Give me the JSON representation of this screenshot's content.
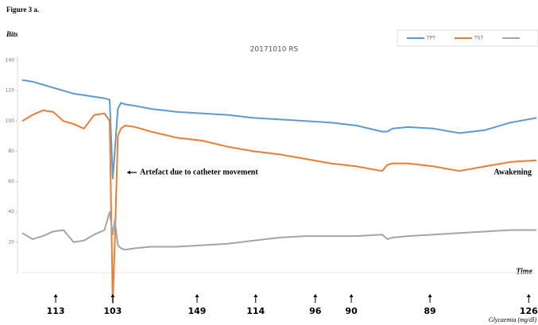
{
  "figure_label": "Figure 3 a.",
  "chart_data": {
    "type": "line",
    "title": "20171010 RS",
    "y_label": "Bits",
    "x_label": "Time",
    "annotations": [
      "Artefact due to catheter movement",
      "Awakening"
    ],
    "xlim": [
      0,
      100
    ],
    "ylim": [
      -20,
      140
    ],
    "yticks": [
      20,
      40,
      60,
      80,
      100,
      120,
      140
    ],
    "x": [
      0,
      2,
      4,
      6,
      8,
      10,
      12,
      14,
      16,
      17,
      17.6,
      18,
      18.6,
      19.2,
      20,
      22,
      25,
      30,
      35,
      40,
      45,
      50,
      55,
      60,
      65,
      70,
      71,
      72,
      75,
      80,
      85,
      90,
      95,
      100
    ],
    "series": [
      {
        "name": "TPT",
        "color": "#5b9bd5",
        "values": [
          127,
          126,
          124,
          122,
          120,
          118,
          117,
          116,
          115,
          114,
          62,
          80,
          108,
          112,
          111,
          110,
          108,
          106,
          105,
          104,
          102,
          101,
          100,
          99,
          97,
          93,
          93,
          95,
          96,
          95,
          92,
          94,
          99,
          102
        ]
      },
      {
        "name": "TST",
        "color": "#ed7d31",
        "values": [
          100,
          104,
          107,
          106,
          100,
          98,
          95,
          104,
          105,
          100,
          -20,
          20,
          90,
          95,
          97,
          96,
          93,
          89,
          87,
          83,
          80,
          78,
          75,
          72,
          70,
          67,
          71,
          72,
          72,
          70,
          67,
          70,
          73,
          74
        ]
      },
      {
        "color": "#a5a5a5",
        "values": [
          26,
          22,
          24,
          27,
          28,
          20,
          21,
          25,
          28,
          40,
          25,
          35,
          18,
          16,
          15,
          16,
          17,
          17,
          18,
          19,
          21,
          23,
          24,
          24,
          24,
          25,
          22,
          23,
          24,
          25,
          26,
          27,
          28,
          28
        ]
      }
    ],
    "glycaemia": {
      "label": "Glycaemia (mg/dl)",
      "x": [
        6.5,
        17.6,
        34,
        45.4,
        57,
        64,
        79.3,
        98.5
      ],
      "values": [
        113,
        103,
        149,
        114,
        96,
        90,
        89,
        126
      ]
    }
  }
}
